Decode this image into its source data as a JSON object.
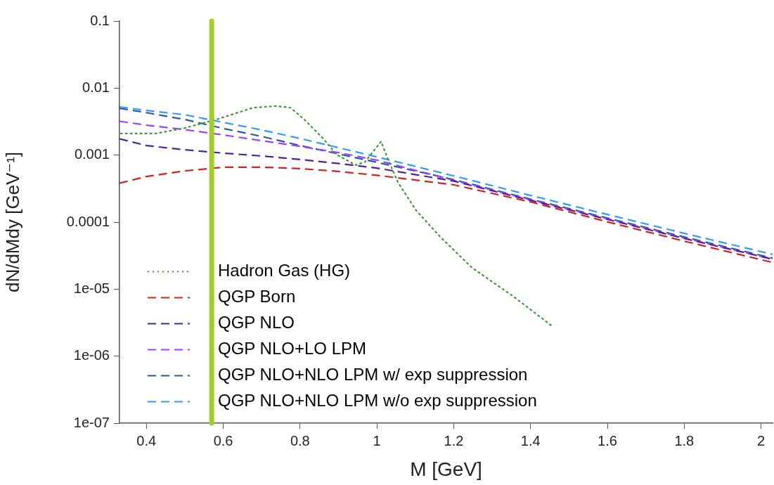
{
  "chart_data": {
    "type": "line",
    "xlabel": "M [GeV]",
    "ylabel": "dN/dMdy [GeV⁻¹]",
    "log": "y",
    "grid": false,
    "legend": "bottom left",
    "marker": "none",
    "xlim": [
      0.33,
      2.03
    ],
    "xticks": [
      0.4,
      0.6,
      0.8,
      1,
      1.2,
      1.4,
      1.6,
      1.8,
      2
    ],
    "ylim": [
      1e-07,
      0.1
    ],
    "yticks": [
      {
        "value": 1e-07,
        "label": "1e-07"
      },
      {
        "value": 1e-06,
        "label": "1e-06"
      },
      {
        "value": 1e-05,
        "label": "1e-05"
      },
      0.0001,
      0.001,
      0.01,
      0.1
    ],
    "ref_lines": [
      {
        "axis": "x",
        "value": 0.57,
        "color": "#a4cc2a"
      }
    ],
    "series": [
      {
        "name": "Hadron Gas (HG)",
        "color": "#3a9a3a",
        "line_style": "dotted",
        "x": [
          0.333,
          0.424,
          0.496,
          0.582,
          0.678,
          0.738,
          0.775,
          0.811,
          0.86,
          0.896,
          0.945,
          0.969,
          1.011,
          1.029,
          1.055,
          1.102,
          1.164,
          1.247,
          1.351,
          1.46
        ],
        "values": [
          0.0021,
          0.0021,
          0.0025,
          0.0034,
          0.0051,
          0.0054,
          0.0051,
          0.0034,
          0.00177,
          0.00101,
          0.00071,
          0.00079,
          0.0016,
          0.00086,
          0.00039,
          0.00015,
          6.1e-05,
          2.1e-05,
          8.1e-06,
          2.7e-06
        ]
      },
      {
        "name": "QGP Born",
        "color": "#d62020",
        "line_style": "dashed",
        "x": [
          0.33,
          0.4,
          0.5,
          0.6,
          0.7,
          0.8,
          0.9,
          1,
          1.2,
          1.4,
          1.6,
          1.8,
          2.03
        ],
        "values": [
          0.00038,
          0.00048,
          0.00058,
          0.00066,
          0.00066,
          0.00063,
          0.00057,
          0.0005,
          0.00036,
          0.0002,
          0.000101,
          5.2e-05,
          2.5e-05
        ]
      },
      {
        "name": "QGP NLO",
        "color": "#5020a0",
        "line_style": "dashed",
        "x": [
          0.33,
          0.4,
          0.5,
          0.6,
          0.7,
          0.8,
          0.9,
          1,
          1.2,
          1.4,
          1.6,
          1.8,
          2.03
        ],
        "values": [
          0.00175,
          0.00139,
          0.0012,
          0.00107,
          0.00097,
          0.00086,
          0.00075,
          0.00064,
          0.00041,
          0.000211,
          0.00011,
          5.7e-05,
          2.8e-05
        ]
      },
      {
        "name": "QGP NLO+LO LPM",
        "color": "#a040ff",
        "line_style": "dashed",
        "x": [
          0.33,
          0.4,
          0.5,
          0.6,
          0.7,
          0.8,
          0.9,
          1,
          1.2,
          1.4,
          1.6,
          1.8,
          2.03
        ],
        "values": [
          0.0032,
          0.0028,
          0.0024,
          0.002,
          0.00164,
          0.00135,
          0.00109,
          0.00084,
          0.00042,
          0.000215,
          0.000112,
          5.8e-05,
          2.8e-05
        ]
      },
      {
        "name": "QGP NLO+NLO LPM w/ exp suppression",
        "color": "#2a5a9a",
        "line_style": "dashed",
        "x": [
          0.33,
          0.4,
          0.5,
          0.6,
          0.7,
          0.8,
          0.9,
          1,
          1.2,
          1.4,
          1.6,
          1.8,
          2.03
        ],
        "values": [
          0.005,
          0.0043,
          0.0034,
          0.0025,
          0.0019,
          0.00139,
          0.00104,
          0.00078,
          0.00043,
          0.00022,
          0.000115,
          6e-05,
          2.9e-05
        ]
      },
      {
        "name": "QGP NLO+NLO LPM w/o exp suppression",
        "color": "#3399ff",
        "line_style": "dashed",
        "x": [
          0.33,
          0.4,
          0.5,
          0.6,
          0.7,
          0.8,
          0.9,
          1,
          1.2,
          1.4,
          1.6,
          1.8,
          2.03
        ],
        "values": [
          0.00525,
          0.00465,
          0.004,
          0.00308,
          0.00237,
          0.00177,
          0.00129,
          0.00094,
          0.00049,
          0.00025,
          0.00013,
          6.8e-05,
          3.3e-05
        ]
      }
    ]
  }
}
